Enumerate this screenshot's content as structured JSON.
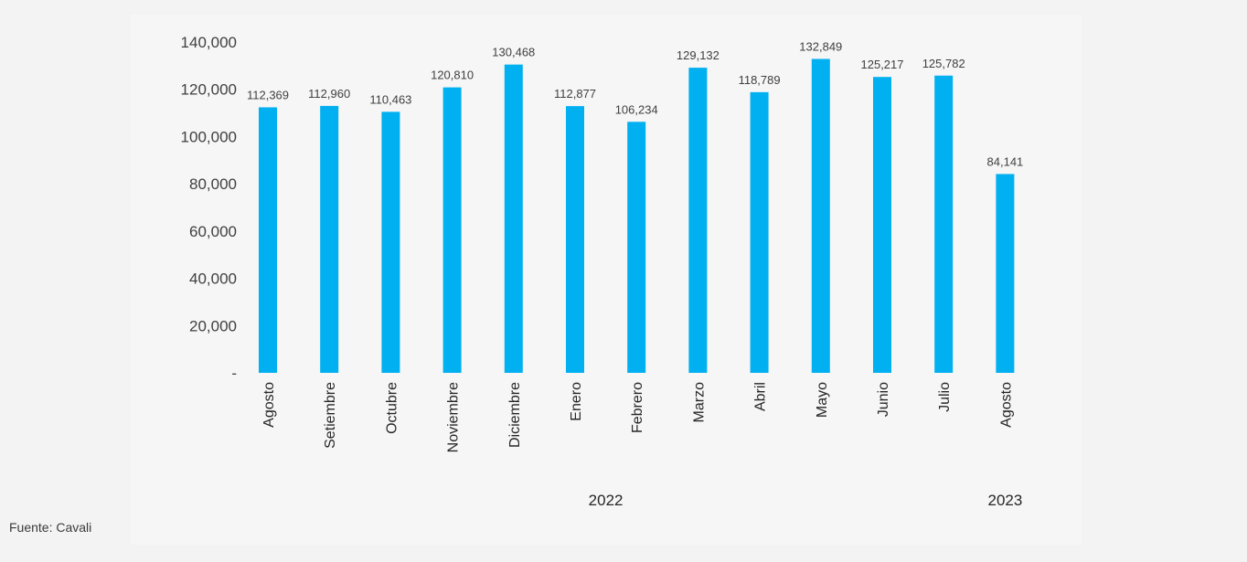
{
  "colors": {
    "bar": "#00b0f0",
    "background": "#f3f3f3",
    "panel": "#f6f6f6"
  },
  "source_note": "Fuente: Cavali",
  "chart_data": {
    "type": "bar",
    "categories": [
      "Agosto",
      "Setiembre",
      "Octubre",
      "Noviembre",
      "Diciembre",
      "Enero",
      "Febrero",
      "Marzo",
      "Abril",
      "Mayo",
      "Junio",
      "Julio",
      "Agosto"
    ],
    "values": [
      112369,
      112960,
      110463,
      120810,
      130468,
      112877,
      106234,
      129132,
      118789,
      132849,
      125217,
      125782,
      84141
    ],
    "data_labels": [
      "112,369",
      "112,960",
      "110,463",
      "120,810",
      "130,468",
      "112,877",
      "106,234",
      "129,132",
      "118,789",
      "132,849",
      "125,217",
      "125,782",
      "84,141"
    ],
    "year_groups": [
      {
        "label": "2022",
        "first_index": 0,
        "last_index": 11
      },
      {
        "label": "2023",
        "first_index": 12,
        "last_index": 12
      }
    ],
    "y_ticks": [
      {
        "value": 0,
        "label": "-"
      },
      {
        "value": 20000,
        "label": "20,000"
      },
      {
        "value": 40000,
        "label": "40,000"
      },
      {
        "value": 60000,
        "label": "60,000"
      },
      {
        "value": 80000,
        "label": "80,000"
      },
      {
        "value": 100000,
        "label": "100,000"
      },
      {
        "value": 120000,
        "label": "120,000"
      },
      {
        "value": 140000,
        "label": "140,000"
      }
    ],
    "ylim": [
      0,
      140000
    ],
    "grid": false,
    "legend": "none"
  }
}
